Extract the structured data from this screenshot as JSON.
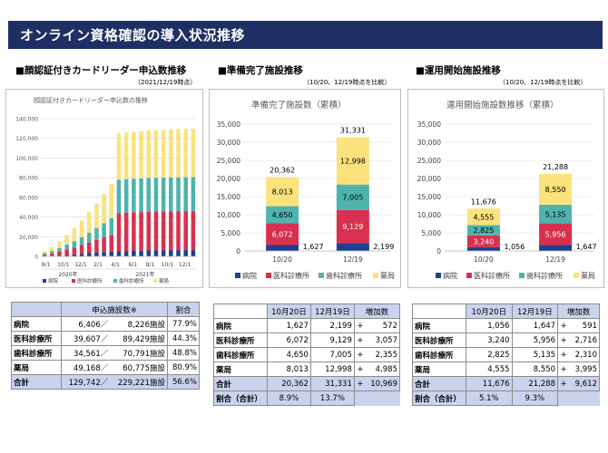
{
  "title": "オンライン資格確認の導入状況推移",
  "sections": {
    "s1": {
      "heading": "■顔認証付きカードリーダー申込数推移",
      "sub": "（2021/12/19時点）"
    },
    "s2": {
      "heading": "■準備完了施設推移",
      "sub": "（10/20、12/19時点を比較）"
    },
    "s3": {
      "heading": "■運用開始施設推移",
      "sub": "（10/20、12/19時点を比較）"
    }
  },
  "colors": {
    "hospital": "#1f3f8f",
    "medical": "#d9304f",
    "dental": "#4fb3ad",
    "pharmacy": "#fbe27c",
    "header": "#1e2f63",
    "table_header": "#c9d3ee"
  },
  "chart_data": [
    {
      "type": "bar",
      "stacked": true,
      "title": "顔認証付きカードリーダー申込数の推移",
      "ylim": [
        0,
        140000
      ],
      "yticks": [
        "140,000",
        "120,000",
        "100,000",
        "80,000",
        "60,000",
        "40,000",
        "20,000",
        "0"
      ],
      "xtick_labels": [
        "8/1",
        "10/1",
        "12/1",
        "2/1",
        "4/1",
        "6/1",
        "8/1",
        "10/1",
        "12/1"
      ],
      "year_labels": [
        "2020年",
        "2021年"
      ],
      "legend": [
        "病院",
        "医科診療所",
        "歯科診療所",
        "薬局"
      ],
      "series": [
        {
          "name": "病院",
          "values": [
            200,
            500,
            1000,
            1500,
            2000,
            2600,
            3200,
            3800,
            4300,
            4800,
            5100,
            5400,
            5600,
            5800,
            6100,
            6200,
            6300,
            6350,
            6400,
            6400,
            6406
          ]
        },
        {
          "name": "医科診療所",
          "values": [
            1500,
            2500,
            4000,
            5500,
            7000,
            9000,
            11000,
            13000,
            15000,
            17000,
            39000,
            39100,
            39200,
            39250,
            39300,
            39350,
            39400,
            39450,
            39500,
            39550,
            39607
          ]
        },
        {
          "name": "歯科診療所",
          "values": [
            1500,
            2500,
            3500,
            5000,
            6500,
            8000,
            10000,
            12000,
            14500,
            17000,
            34000,
            34100,
            34200,
            34250,
            34300,
            34350,
            34400,
            34450,
            34500,
            34530,
            34561
          ]
        },
        {
          "name": "薬局",
          "values": [
            2000,
            4000,
            7000,
            10000,
            13000,
            17000,
            21000,
            25000,
            30000,
            35000,
            47000,
            47300,
            47600,
            47900,
            48200,
            48400,
            48600,
            48800,
            49000,
            49100,
            49168
          ]
        }
      ]
    },
    {
      "type": "bar",
      "stacked": true,
      "title": "準備完了施設数（累積）",
      "ylim": [
        0,
        35000
      ],
      "yticks": [
        "35,000",
        "30,000",
        "25,000",
        "20,000",
        "15,000",
        "10,000",
        "5,000",
        "0"
      ],
      "categories": [
        "10/20",
        "12/19"
      ],
      "totals": [
        "20,362",
        "31,331"
      ],
      "legend": [
        "病院",
        "医科診療所",
        "歯科診療所",
        "薬局"
      ],
      "series": [
        {
          "name": "病院",
          "values": [
            1627,
            2199
          ],
          "labels": [
            "1,627",
            "2,199"
          ]
        },
        {
          "name": "医科診療所",
          "values": [
            6072,
            9129
          ],
          "labels": [
            "6,072",
            "9,129"
          ]
        },
        {
          "name": "歯科診療所",
          "values": [
            4650,
            7005
          ],
          "labels": [
            "4,650",
            "7,005"
          ]
        },
        {
          "name": "薬局",
          "values": [
            8013,
            12998
          ],
          "labels": [
            "8,013",
            "12,998"
          ]
        }
      ]
    },
    {
      "type": "bar",
      "stacked": true,
      "title": "運用開始施設数推移（累積）",
      "ylim": [
        0,
        35000
      ],
      "yticks": [
        "35,000",
        "30,000",
        "25,000",
        "20,000",
        "15,000",
        "10,000",
        "5,000",
        "0"
      ],
      "categories": [
        "10/20",
        "12/19"
      ],
      "totals": [
        "11,676",
        "21,288"
      ],
      "legend": [
        "病院",
        "医科診療所",
        "歯科診療所",
        "薬局"
      ],
      "series": [
        {
          "name": "病院",
          "values": [
            1056,
            1647
          ],
          "labels": [
            "1,056",
            "1,647"
          ]
        },
        {
          "name": "医科診療所",
          "values": [
            3240,
            5956
          ],
          "labels": [
            "3,240",
            "5,956"
          ]
        },
        {
          "name": "歯科診療所",
          "values": [
            2825,
            5135
          ],
          "labels": [
            "2,825",
            "5,135"
          ]
        },
        {
          "name": "薬局",
          "values": [
            4555,
            8550
          ],
          "labels": [
            "4,555",
            "8,550"
          ]
        }
      ]
    }
  ],
  "table1": {
    "headers": [
      "",
      "申込施設数※",
      "割合"
    ],
    "rows": [
      {
        "label": "病院",
        "applied": "6,406／",
        "total": "8,226施設",
        "ratio": "77.9%"
      },
      {
        "label": "医科診療所",
        "applied": "39,607／",
        "total": "89,429施設",
        "ratio": "44.3%"
      },
      {
        "label": "歯科診療所",
        "applied": "34,561／",
        "total": "70,791施設",
        "ratio": "48.8%"
      },
      {
        "label": "薬局",
        "applied": "49,168／",
        "total": "60,775施設",
        "ratio": "80.9%"
      },
      {
        "label": "合計",
        "applied": "129,742／",
        "total": "229,221施設",
        "ratio": "56.6%"
      }
    ]
  },
  "table2": {
    "headers": [
      "",
      "10月20日",
      "12月19日",
      "増加数"
    ],
    "rows": [
      {
        "label": "病院",
        "a": "1,627",
        "b": "2,199",
        "sign": "+",
        "inc": "572"
      },
      {
        "label": "医科診療所",
        "a": "6,072",
        "b": "9,129",
        "sign": "+",
        "inc": "3,057"
      },
      {
        "label": "歯科診療所",
        "a": "4,650",
        "b": "7,005",
        "sign": "+",
        "inc": "2,355"
      },
      {
        "label": "薬局",
        "a": "8,013",
        "b": "12,998",
        "sign": "+",
        "inc": "4,985"
      },
      {
        "label": "合計",
        "a": "20,362",
        "b": "31,331",
        "sign": "+",
        "inc": "10,969"
      }
    ],
    "ratio": {
      "label": "割合（合計）",
      "a": "8.9%",
      "b": "13.7%"
    }
  },
  "table3": {
    "headers": [
      "",
      "10月20日",
      "12月19日",
      "増加数"
    ],
    "rows": [
      {
        "label": "病院",
        "a": "1,056",
        "b": "1,647",
        "sign": "+",
        "inc": "591"
      },
      {
        "label": "医科診療所",
        "a": "3,240",
        "b": "5,956",
        "sign": "+",
        "inc": "2,716"
      },
      {
        "label": "歯科診療所",
        "a": "2,825",
        "b": "5,135",
        "sign": "+",
        "inc": "2,310"
      },
      {
        "label": "薬局",
        "a": "4,555",
        "b": "8,550",
        "sign": "+",
        "inc": "3,995"
      },
      {
        "label": "合計",
        "a": "11,676",
        "b": "21,288",
        "sign": "+",
        "inc": "9,612"
      }
    ],
    "ratio": {
      "label": "割合（合計）",
      "a": "5.1%",
      "b": "9.3%"
    }
  }
}
